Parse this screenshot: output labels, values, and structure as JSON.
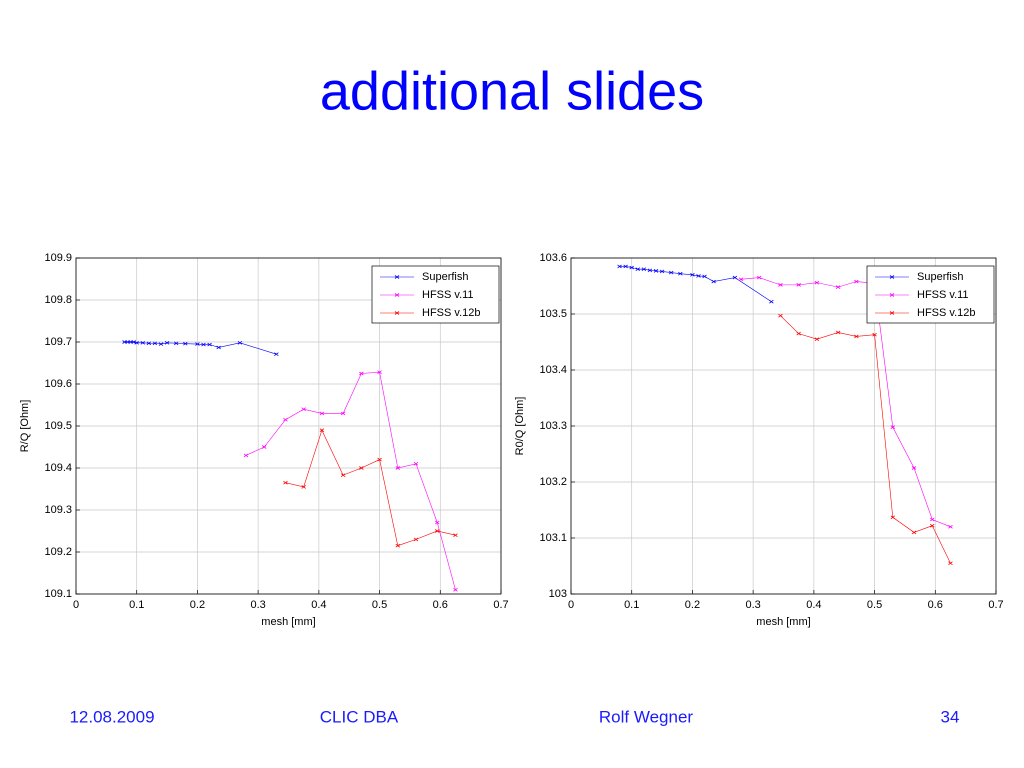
{
  "header": {
    "title": "additional slides"
  },
  "chart_data": [
    {
      "type": "line",
      "xlabel": "mesh [mm]",
      "ylabel": "R/Q [Ohm]",
      "xlim": [
        0,
        0.7
      ],
      "xticks": [
        0,
        0.1,
        0.2,
        0.3,
        0.4,
        0.5,
        0.6,
        0.7
      ],
      "ylim": [
        109.1,
        109.9
      ],
      "yticks": [
        109.1,
        109.2,
        109.3,
        109.4,
        109.5,
        109.6,
        109.7,
        109.8,
        109.9
      ],
      "grid": true,
      "legend": "upper right",
      "series": [
        {
          "name": "Superfish",
          "color": "#0000ff",
          "x": [
            0.08,
            0.085,
            0.09,
            0.095,
            0.1,
            0.11,
            0.12,
            0.13,
            0.14,
            0.15,
            0.165,
            0.18,
            0.2,
            0.21,
            0.22,
            0.235,
            0.27,
            0.33
          ],
          "values": [
            109.7,
            109.7,
            109.7,
            109.7,
            109.698,
            109.698,
            109.697,
            109.697,
            109.695,
            109.698,
            109.697,
            109.696,
            109.695,
            109.694,
            109.694,
            109.687,
            109.698,
            109.671
          ]
        },
        {
          "name": "HFSS v.11",
          "color": "#ff00ff",
          "x": [
            0.28,
            0.31,
            0.345,
            0.375,
            0.405,
            0.44,
            0.47,
            0.5,
            0.53,
            0.56,
            0.595,
            0.625
          ],
          "values": [
            109.43,
            109.45,
            109.515,
            109.54,
            109.53,
            109.53,
            109.625,
            109.628,
            109.4,
            109.41,
            109.27,
            109.11
          ]
        },
        {
          "name": "HFSS v.12b",
          "color": "#ff0000",
          "x": [
            0.345,
            0.375,
            0.405,
            0.44,
            0.47,
            0.5,
            0.53,
            0.56,
            0.595,
            0.625
          ],
          "values": [
            109.365,
            109.355,
            109.49,
            109.383,
            109.4,
            109.42,
            109.215,
            109.23,
            109.25,
            109.24
          ]
        }
      ]
    },
    {
      "type": "line",
      "xlabel": "mesh [mm]",
      "ylabel": "R0/Q [Ohm]",
      "xlim": [
        0,
        0.7
      ],
      "xticks": [
        0,
        0.1,
        0.2,
        0.3,
        0.4,
        0.5,
        0.6,
        0.7
      ],
      "ylim": [
        103,
        103.6
      ],
      "yticks": [
        103,
        103.1,
        103.2,
        103.3,
        103.4,
        103.5,
        103.6
      ],
      "grid": true,
      "legend": "upper right",
      "series": [
        {
          "name": "Superfish",
          "color": "#0000ff",
          "x": [
            0.08,
            0.09,
            0.1,
            0.11,
            0.12,
            0.13,
            0.14,
            0.15,
            0.165,
            0.18,
            0.2,
            0.21,
            0.22,
            0.235,
            0.27,
            0.33
          ],
          "values": [
            103.585,
            103.585,
            103.583,
            103.58,
            103.58,
            103.578,
            103.577,
            103.576,
            103.574,
            103.572,
            103.57,
            103.568,
            103.567,
            103.558,
            103.565,
            103.522
          ]
        },
        {
          "name": "HFSS v.11",
          "color": "#ff00ff",
          "x": [
            0.28,
            0.31,
            0.345,
            0.375,
            0.405,
            0.44,
            0.47,
            0.5,
            0.53,
            0.565,
            0.595,
            0.625
          ],
          "values": [
            103.562,
            103.565,
            103.552,
            103.552,
            103.556,
            103.548,
            103.558,
            103.555,
            103.298,
            103.225,
            103.133,
            103.12
          ]
        },
        {
          "name": "HFSS v.12b",
          "color": "#ff0000",
          "x": [
            0.345,
            0.375,
            0.405,
            0.44,
            0.47,
            0.5,
            0.53,
            0.565,
            0.595,
            0.625
          ],
          "values": [
            103.497,
            103.465,
            103.455,
            103.467,
            103.46,
            103.463,
            103.137,
            103.11,
            103.122,
            103.055
          ]
        }
      ]
    }
  ],
  "footer": {
    "date": "12.08.2009",
    "event": "CLIC DBA",
    "author": "Rolf Wegner",
    "page": "34"
  }
}
